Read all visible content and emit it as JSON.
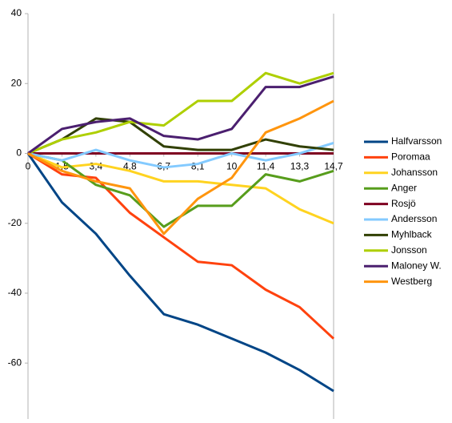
{
  "chart_data": {
    "type": "line",
    "categories": [
      "0",
      "1,5",
      "3,4",
      "4,8",
      "6,7",
      "8,1",
      "10",
      "11,4",
      "13,3",
      "14,7"
    ],
    "series": [
      {
        "name": "Halfvarsson",
        "color": "#004586",
        "values": [
          0,
          -14,
          -23,
          -35,
          -46,
          -49,
          -53,
          -57,
          -62,
          -68
        ]
      },
      {
        "name": "Poromaa",
        "color": "#ff420e",
        "values": [
          0,
          -6,
          -7,
          -17,
          -24,
          -31,
          -32,
          -39,
          -44,
          -53
        ]
      },
      {
        "name": "Johansson",
        "color": "#ffd320",
        "values": [
          0,
          -4,
          -3,
          -5,
          -8,
          -8,
          -9,
          -10,
          -16,
          -20
        ]
      },
      {
        "name": "Anger",
        "color": "#579d1c",
        "values": [
          0,
          -2,
          -9,
          -12,
          -21,
          -15,
          -15,
          -6,
          -8,
          -5
        ]
      },
      {
        "name": "Rosjö",
        "color": "#7e0021",
        "values": [
          0,
          0,
          0,
          0,
          0,
          0,
          0,
          0,
          0,
          0
        ]
      },
      {
        "name": "Andersson",
        "color": "#83caff",
        "values": [
          0,
          -2,
          1,
          -2,
          -4,
          -3,
          0,
          -2,
          0,
          3
        ]
      },
      {
        "name": "Myhlback",
        "color": "#314004",
        "values": [
          0,
          4,
          10,
          9,
          2,
          1,
          1,
          4,
          2,
          1
        ]
      },
      {
        "name": "Jonsson",
        "color": "#aecf00",
        "values": [
          0,
          4,
          6,
          9,
          8,
          15,
          15,
          23,
          20,
          23
        ]
      },
      {
        "name": "Maloney W.",
        "color": "#4b1f6f",
        "values": [
          0,
          7,
          9,
          10,
          5,
          4,
          7,
          19,
          19,
          22
        ]
      },
      {
        "name": "Westberg",
        "color": "#ff950e",
        "values": [
          0,
          -5,
          -8,
          -10,
          -23,
          -13,
          -7,
          6,
          10,
          15
        ]
      }
    ],
    "ylim": [
      -76,
      40
    ],
    "yticks": [
      -60,
      -40,
      -20,
      0,
      20,
      40
    ],
    "grid": false,
    "legend": "right"
  }
}
